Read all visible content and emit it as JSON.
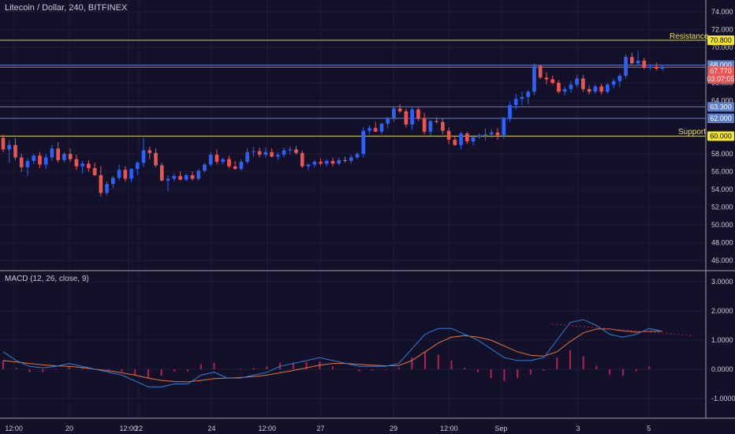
{
  "header": {
    "title": "Litecoin / Dollar, 240, BITFINEX",
    "macd_label": "MACD (12, 26, close, 9)"
  },
  "levels": {
    "resistance_label": "Resistance",
    "support_label": "Support"
  },
  "colors": {
    "background": "#131129",
    "up": "#2962ff",
    "down": "#ef5350",
    "resistance": "#d4cc5a",
    "support": "#d4cc5a",
    "level_blue": "#5d7fc7",
    "level_red": "#c77a7a",
    "macd_line": "#2e7ed6",
    "signal_line": "#e8743a",
    "histogram": "#b51f4f"
  },
  "chart_data": [
    {
      "type": "candlestick",
      "title": "Litecoin / Dollar, 240, BITFINEX",
      "ylim": [
        44.5,
        75.0
      ],
      "y_ticks": [
        "74.000",
        "72.000",
        "70.000",
        "68.000",
        "66.000",
        "64.000",
        "62.000",
        "60.000",
        "58.000",
        "56.000",
        "54.000",
        "52.000",
        "50.000",
        "48.000",
        "46.000"
      ],
      "x_ticks": [
        "12:00",
        "20",
        "12:00",
        "22",
        "24",
        "12:00",
        "27",
        "29",
        "12:00",
        "Sep",
        "3",
        "5"
      ],
      "horizontal_levels": [
        {
          "name": "resistance",
          "value": 70.8,
          "label": "70.800",
          "text": "Resistance"
        },
        {
          "name": "level-68",
          "value": 68.0,
          "label": "68.000"
        },
        {
          "name": "level-63",
          "value": 63.3,
          "label": "63.300"
        },
        {
          "name": "level-62",
          "value": 62.0,
          "label": "62.000"
        },
        {
          "name": "support",
          "value": 60.0,
          "label": "60.000",
          "text": "Support"
        }
      ],
      "last_price": {
        "value": 67.77,
        "label": "67.770",
        "countdown": "03:07:05"
      },
      "candles": [
        [
          59.8,
          60.2,
          58.2,
          58.5
        ],
        [
          58.5,
          59.5,
          57.0,
          59.0
        ],
        [
          59.0,
          59.8,
          57.3,
          57.6
        ],
        [
          57.6,
          58.0,
          56.0,
          56.5
        ],
        [
          56.5,
          57.5,
          55.5,
          57.2
        ],
        [
          57.2,
          58.0,
          56.8,
          57.8
        ],
        [
          57.8,
          58.2,
          56.4,
          56.8
        ],
        [
          56.8,
          58.0,
          56.3,
          57.6
        ],
        [
          57.6,
          59.0,
          57.2,
          58.6
        ],
        [
          58.6,
          59.3,
          57.0,
          57.3
        ],
        [
          57.3,
          58.2,
          57.0,
          58.0
        ],
        [
          58.0,
          58.6,
          57.1,
          57.4
        ],
        [
          57.4,
          57.9,
          56.2,
          56.6
        ],
        [
          56.6,
          57.2,
          55.8,
          56.9
        ],
        [
          56.9,
          57.3,
          56.0,
          56.4
        ],
        [
          56.4,
          57.0,
          55.5,
          55.6
        ],
        [
          55.6,
          56.6,
          53.2,
          53.6
        ],
        [
          53.6,
          54.9,
          53.3,
          54.6
        ],
        [
          54.6,
          55.5,
          54.1,
          55.3
        ],
        [
          55.3,
          56.8,
          55.0,
          56.2
        ],
        [
          56.2,
          56.6,
          54.9,
          55.2
        ],
        [
          55.2,
          56.4,
          54.8,
          56.3
        ],
        [
          56.3,
          57.2,
          55.6,
          57.0
        ],
        [
          57.0,
          59.8,
          56.5,
          58.4
        ],
        [
          58.4,
          58.8,
          57.4,
          58.1
        ],
        [
          58.1,
          58.6,
          56.5,
          56.7
        ],
        [
          56.7,
          57.0,
          54.9,
          55.0
        ],
        [
          55.0,
          55.6,
          53.8,
          55.2
        ],
        [
          55.2,
          55.8,
          54.9,
          55.5
        ],
        [
          55.5,
          56.0,
          55.0,
          55.1
        ],
        [
          55.1,
          55.8,
          54.9,
          55.6
        ],
        [
          55.6,
          56.0,
          55.0,
          55.2
        ],
        [
          55.2,
          56.3,
          55.0,
          56.1
        ],
        [
          56.1,
          57.0,
          55.9,
          56.8
        ],
        [
          56.8,
          58.2,
          56.6,
          57.9
        ],
        [
          57.9,
          58.5,
          56.8,
          57.1
        ],
        [
          57.1,
          57.6,
          56.8,
          57.4
        ],
        [
          57.4,
          57.8,
          56.4,
          56.6
        ],
        [
          56.6,
          57.2,
          56.2,
          56.3
        ],
        [
          56.3,
          57.4,
          56.1,
          57.1
        ],
        [
          57.1,
          58.6,
          56.9,
          58.2
        ],
        [
          58.2,
          58.8,
          57.7,
          58.3
        ],
        [
          58.3,
          58.7,
          57.6,
          57.9
        ],
        [
          57.9,
          58.7,
          57.6,
          58.2
        ],
        [
          58.2,
          58.6,
          57.6,
          57.7
        ],
        [
          57.7,
          58.2,
          57.3,
          57.9
        ],
        [
          57.9,
          58.7,
          57.6,
          58.4
        ],
        [
          58.4,
          58.8,
          57.9,
          58.5
        ],
        [
          58.5,
          58.9,
          57.9,
          58.1
        ],
        [
          58.1,
          58.4,
          56.4,
          56.6
        ],
        [
          56.6,
          56.9,
          56.2,
          56.8
        ],
        [
          56.8,
          57.3,
          56.5,
          57.1
        ],
        [
          57.1,
          57.5,
          56.7,
          56.9
        ],
        [
          56.9,
          57.4,
          56.6,
          57.2
        ],
        [
          57.2,
          57.6,
          56.6,
          56.9
        ],
        [
          56.9,
          57.6,
          56.7,
          57.3
        ],
        [
          57.3,
          57.7,
          57.0,
          57.2
        ],
        [
          57.2,
          57.9,
          56.9,
          57.6
        ],
        [
          57.6,
          58.2,
          57.4,
          58.0
        ],
        [
          58.0,
          61.0,
          57.6,
          60.6
        ],
        [
          60.6,
          61.2,
          60.2,
          60.9
        ],
        [
          60.9,
          61.6,
          60.5,
          60.5
        ],
        [
          60.5,
          61.5,
          60.2,
          61.4
        ],
        [
          61.4,
          62.2,
          60.9,
          62.0
        ],
        [
          62.0,
          63.4,
          61.6,
          63.1
        ],
        [
          63.1,
          63.6,
          62.6,
          62.8
        ],
        [
          62.8,
          63.1,
          61.0,
          61.3
        ],
        [
          61.3,
          63.3,
          60.7,
          63.0
        ],
        [
          63.0,
          63.2,
          61.7,
          62.0
        ],
        [
          62.0,
          62.6,
          60.2,
          60.5
        ],
        [
          60.5,
          61.8,
          60.1,
          61.7
        ],
        [
          61.7,
          62.1,
          61.4,
          61.6
        ],
        [
          61.6,
          62.0,
          60.2,
          60.6
        ],
        [
          60.6,
          61.0,
          59.1,
          59.6
        ],
        [
          59.6,
          59.9,
          58.9,
          59.0
        ],
        [
          59.0,
          60.5,
          58.5,
          60.3
        ],
        [
          60.3,
          60.5,
          59.1,
          59.4
        ],
        [
          59.4,
          60.1,
          58.9,
          59.9
        ],
        [
          59.9,
          60.3,
          59.7,
          60.1
        ],
        [
          60.1,
          60.9,
          59.5,
          60.2
        ],
        [
          60.2,
          60.8,
          59.8,
          60.4
        ],
        [
          60.4,
          60.9,
          59.6,
          60.1
        ],
        [
          60.1,
          62.2,
          59.7,
          62.0
        ],
        [
          62.0,
          63.9,
          61.6,
          63.5
        ],
        [
          63.5,
          64.8,
          63.0,
          64.2
        ],
        [
          64.2,
          65.0,
          63.5,
          64.4
        ],
        [
          64.4,
          65.2,
          63.6,
          65.0
        ],
        [
          65.0,
          68.2,
          64.6,
          67.9
        ],
        [
          67.9,
          68.0,
          66.4,
          66.6
        ],
        [
          66.6,
          67.2,
          65.8,
          66.4
        ],
        [
          66.4,
          66.8,
          65.8,
          66.0
        ],
        [
          66.0,
          66.3,
          64.8,
          65.0
        ],
        [
          65.0,
          65.6,
          64.6,
          65.3
        ],
        [
          65.3,
          66.2,
          64.9,
          65.8
        ],
        [
          65.8,
          66.9,
          65.5,
          66.5
        ],
        [
          66.5,
          66.9,
          65.0,
          65.3
        ],
        [
          65.3,
          65.7,
          64.7,
          65.0
        ],
        [
          65.0,
          65.8,
          64.8,
          65.6
        ],
        [
          65.6,
          65.9,
          64.7,
          65.0
        ],
        [
          65.0,
          66.0,
          64.8,
          65.8
        ],
        [
          65.8,
          66.5,
          65.4,
          66.2
        ],
        [
          66.2,
          67.0,
          65.5,
          66.8
        ],
        [
          66.8,
          69.2,
          66.5,
          68.9
        ],
        [
          68.9,
          69.4,
          68.1,
          68.2
        ],
        [
          68.2,
          69.6,
          68.0,
          68.5
        ],
        [
          68.5,
          68.8,
          67.5,
          67.7
        ],
        [
          67.7,
          68.1,
          67.5,
          67.8
        ],
        [
          67.8,
          68.3,
          67.4,
          67.6
        ],
        [
          67.6,
          68.0,
          67.4,
          67.77
        ]
      ]
    },
    {
      "type": "line",
      "title": "MACD (12, 26, close, 9)",
      "ylim": [
        -1.6,
        3.2
      ],
      "y_ticks": [
        "3.0000",
        "2.0000",
        "1.0000",
        "0.0000",
        "-1.0000"
      ],
      "series": [
        {
          "values": [
            0.6,
            0.3,
            0.1,
            0.05,
            0.1,
            0.2,
            0.1,
            0.0,
            -0.1,
            -0.2,
            -0.4,
            -0.6,
            -0.6,
            -0.5,
            -0.5,
            -0.2,
            -0.1,
            -0.3,
            -0.3,
            -0.2,
            -0.1,
            0.1,
            0.2,
            0.3,
            0.4,
            0.3,
            0.2,
            0.1,
            0.1,
            0.1,
            0.2,
            0.7,
            1.2,
            1.4,
            1.4,
            1.2,
            1.0,
            0.7,
            0.4,
            0.3,
            0.3,
            0.4,
            1.0,
            1.6,
            1.7,
            1.5,
            1.2,
            1.1,
            1.2,
            1.4,
            1.3
          ]
        },
        {
          "values": [
            0.3,
            0.25,
            0.2,
            0.15,
            0.12,
            0.1,
            0.06,
            0.0,
            -0.05,
            -0.12,
            -0.2,
            -0.3,
            -0.38,
            -0.42,
            -0.43,
            -0.38,
            -0.32,
            -0.3,
            -0.28,
            -0.25,
            -0.2,
            -0.12,
            -0.04,
            0.05,
            0.14,
            0.2,
            0.2,
            0.17,
            0.14,
            0.12,
            0.13,
            0.3,
            0.6,
            0.9,
            1.1,
            1.15,
            1.1,
            1.0,
            0.8,
            0.6,
            0.48,
            0.45,
            0.6,
            0.95,
            1.25,
            1.38,
            1.38,
            1.32,
            1.27,
            1.3,
            1.3
          ]
        },
        {
          "values": [
            0.3,
            0.05,
            -0.1,
            -0.1,
            -0.02,
            0.1,
            0.04,
            0.0,
            -0.05,
            -0.08,
            -0.2,
            -0.3,
            -0.22,
            -0.08,
            -0.07,
            0.18,
            0.22,
            0.0,
            -0.02,
            0.05,
            0.1,
            0.22,
            0.24,
            0.25,
            0.26,
            0.1,
            0.0,
            -0.07,
            -0.04,
            -0.02,
            0.07,
            0.4,
            0.6,
            0.5,
            0.3,
            0.05,
            -0.1,
            -0.3,
            -0.4,
            -0.3,
            -0.18,
            -0.05,
            0.4,
            0.65,
            0.45,
            0.12,
            -0.18,
            -0.22,
            -0.07,
            0.1,
            0.0
          ]
        }
      ]
    }
  ]
}
